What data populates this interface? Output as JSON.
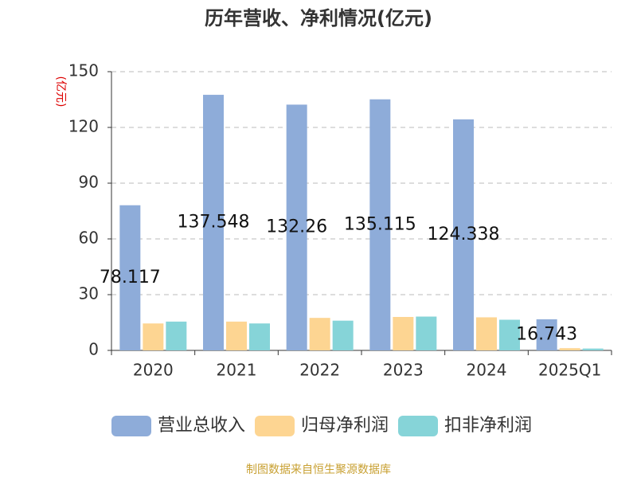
{
  "chart_data": {
    "type": "bar",
    "title": "历年营收、净利情况(亿元)",
    "y_axis_label": "(亿元)",
    "source": "制图数据来自恒生聚源数据库",
    "categories": [
      "2020",
      "2021",
      "2022",
      "2023",
      "2024",
      "2025Q1"
    ],
    "series": [
      {
        "name": "营业总收入",
        "color": "#8eacd9",
        "values": [
          78.117,
          137.548,
          132.26,
          135.115,
          124.338,
          16.743
        ],
        "show_labels": true
      },
      {
        "name": "归母净利润",
        "color": "#fdd592",
        "values": [
          14.5,
          15.5,
          17.5,
          18,
          17.8,
          1.2
        ],
        "show_labels": false
      },
      {
        "name": "扣非净利润",
        "color": "#86d4d8",
        "values": [
          15.5,
          14.5,
          16,
          18.2,
          16.5,
          1.0
        ],
        "show_labels": false
      }
    ],
    "ylim": [
      0,
      150
    ],
    "yticks": [
      0,
      30,
      60,
      90,
      120,
      150
    ],
    "grid": true,
    "legend": "bottom"
  }
}
